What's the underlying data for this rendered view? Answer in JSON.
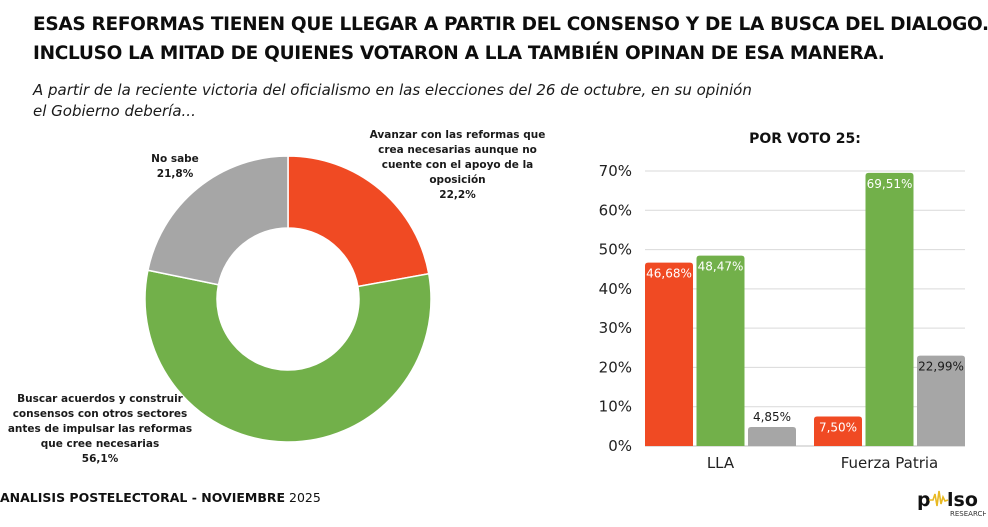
{
  "header": {
    "title_line1": "ESAS REFORMAS TIENEN QUE LLEGAR A PARTIR DEL CONSENSO Y DE LA BUSCA DEL DIALOGO.",
    "title_line2": "INCLUSO LA MITAD DE QUIENES VOTARON A LLA TAMBIÉN OPINAN DE ESA MANERA.",
    "subtitle_line1": "A partir de la reciente victoria del oficialismo en las elecciones del 26 de octubre, en su opinión",
    "subtitle_line2": "el Gobierno debería..."
  },
  "footer": {
    "label_bold": "ANALISIS POSTELECTORAL - NOVIEMBRE",
    "year": "2025",
    "logo_text": "pulso",
    "logo_sub": "RESEARCH"
  },
  "colors": {
    "avanzar": "#F04A23",
    "buscar": "#72B04A",
    "no_sabe": "#A6A6A6",
    "grid": "#D9D9D9"
  },
  "chart_data": [
    {
      "type": "pie",
      "variant": "donut",
      "title": "",
      "slices": [
        {
          "key": "avanzar",
          "label_lines": [
            "Avanzar con las reformas que",
            "crea necesarias aunque no",
            "cuente con el apoyo de la",
            "oposición"
          ],
          "value": 22.2,
          "value_label": "22,2%"
        },
        {
          "key": "buscar",
          "label_lines": [
            "Buscar acuerdos y construir",
            "consensos con otros sectores",
            "antes de impulsar las reformas",
            "que cree necesarias"
          ],
          "value": 56.1,
          "value_label": "56,1%"
        },
        {
          "key": "no_sabe",
          "label_lines": [
            "No sabe"
          ],
          "value": 21.8,
          "value_label": "21,8%"
        }
      ],
      "start": "top",
      "direction": "clockwise"
    },
    {
      "type": "bar",
      "title": "POR VOTO 25:",
      "categories": [
        "LLA",
        "Fuerza Patria"
      ],
      "series": [
        {
          "key": "avanzar",
          "name": "Avanzar con las reformas",
          "values": [
            46.68,
            7.5
          ],
          "labels": [
            "46,68%",
            "7,50%"
          ],
          "label_color": "#ffffff"
        },
        {
          "key": "buscar",
          "name": "Buscar acuerdos",
          "values": [
            48.47,
            69.51
          ],
          "labels": [
            "48,47%",
            "69,51%"
          ],
          "label_color": "#ffffff"
        },
        {
          "key": "no_sabe",
          "name": "No sabe",
          "values": [
            4.85,
            22.99
          ],
          "labels": [
            "4,85%",
            "22,99%"
          ],
          "label_color": "#1a1a1a"
        }
      ],
      "yticks": [
        "0%",
        "10%",
        "20%",
        "30%",
        "40%",
        "50%",
        "60%",
        "70%"
      ],
      "ytick_values": [
        0,
        10,
        20,
        30,
        40,
        50,
        60,
        70
      ],
      "ylim": [
        0,
        70
      ],
      "grid": true,
      "legend": "none"
    }
  ]
}
